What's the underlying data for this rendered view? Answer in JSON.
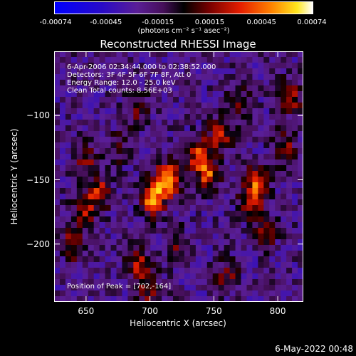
{
  "colorbar": {
    "tick_labels": [
      "-0.00074",
      "-0.00045",
      "-0.00015",
      "0.00015",
      "0.00045",
      "0.00074"
    ],
    "unit_label": "(photons cm⁻² s⁻¹ asec⁻²)"
  },
  "info": {
    "time_range": "6-Apr-2006 02:34:44.000 to 02:38:52.000",
    "detectors": "Detectors: 3F 4F 5F 6F 7F 8F, Att 0",
    "energy": "Energy Range: 12.0 - 25.0 keV",
    "clean_total": "Clean    Total counts: 8.56E+03",
    "peak": "Position of Peak = [702,-164]"
  },
  "footer_date": "6-May-2022 00:48",
  "colors": {
    "background": "#000000",
    "text": "#ffffff"
  },
  "chart_data": {
    "type": "heatmap",
    "title": "Reconstructed RHESSI Image",
    "xlabel": "Heliocentric X (arcsec)",
    "ylabel": "Heliocentric Y (arcsec)",
    "xlim": [
      625,
      820
    ],
    "ylim": [
      -245,
      -50
    ],
    "x_ticks": [
      650,
      700,
      750,
      800
    ],
    "y_ticks": [
      -100,
      -150,
      -200
    ],
    "x_tick_labels": [
      "650",
      "700",
      "750",
      "800"
    ],
    "y_tick_labels": [
      "−100",
      "−150",
      "−200"
    ],
    "colorscale": "blue-purple-black-red-orange-yellow-white",
    "value_range": [
      -0.00074,
      0.00074
    ],
    "peak_position": [
      702,
      -164
    ],
    "hotspots": [
      {
        "x": 714,
        "y": -150,
        "value": 0.00072
      },
      {
        "x": 702,
        "y": -164,
        "value": 0.00074
      },
      {
        "x": 745,
        "y": -145,
        "value": 0.00055
      },
      {
        "x": 755,
        "y": -115,
        "value": 0.00045
      },
      {
        "x": 738,
        "y": -130,
        "value": 0.0005
      },
      {
        "x": 660,
        "y": -160,
        "value": 0.00048
      },
      {
        "x": 648,
        "y": -175,
        "value": 0.00042
      },
      {
        "x": 780,
        "y": -165,
        "value": 0.0005
      },
      {
        "x": 785,
        "y": -150,
        "value": 0.00046
      },
      {
        "x": 790,
        "y": -190,
        "value": 0.00035
      },
      {
        "x": 810,
        "y": -85,
        "value": 0.00045
      },
      {
        "x": 805,
        "y": -125,
        "value": 0.00038
      },
      {
        "x": 690,
        "y": -95,
        "value": 0.0003
      },
      {
        "x": 675,
        "y": -125,
        "value": 0.00025
      },
      {
        "x": 690,
        "y": -215,
        "value": 0.0004
      },
      {
        "x": 700,
        "y": -235,
        "value": 0.00035
      },
      {
        "x": 760,
        "y": -225,
        "value": 0.0003
      },
      {
        "x": 720,
        "y": -200,
        "value": 0.00028
      },
      {
        "x": 640,
        "y": -200,
        "value": 0.00036
      },
      {
        "x": 650,
        "y": -135,
        "value": 0.00032
      },
      {
        "x": 770,
        "y": -90,
        "value": 0.00028
      }
    ]
  }
}
